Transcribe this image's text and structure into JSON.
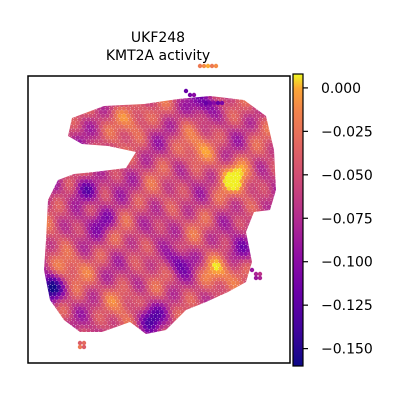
{
  "chart_data": {
    "type": "heatmap",
    "subtype": "spatial spot map",
    "title_lines": [
      "UKF248",
      "KMT2A activity"
    ],
    "colormap": "plasma",
    "colorbar": {
      "range": [
        -0.16,
        0.008
      ],
      "ticks": [
        0.0,
        -0.025,
        -0.05,
        -0.075,
        -0.1,
        -0.125,
        -0.15
      ],
      "tick_labels": [
        "0.000",
        "−0.025",
        "−0.050",
        "−0.075",
        "−0.100",
        "−0.125",
        "−0.150"
      ]
    },
    "axes_visible": false,
    "grid": false,
    "value_summary": {
      "min": -0.158,
      "max": 0.006,
      "typical_range": [
        -0.09,
        -0.01
      ]
    }
  }
}
